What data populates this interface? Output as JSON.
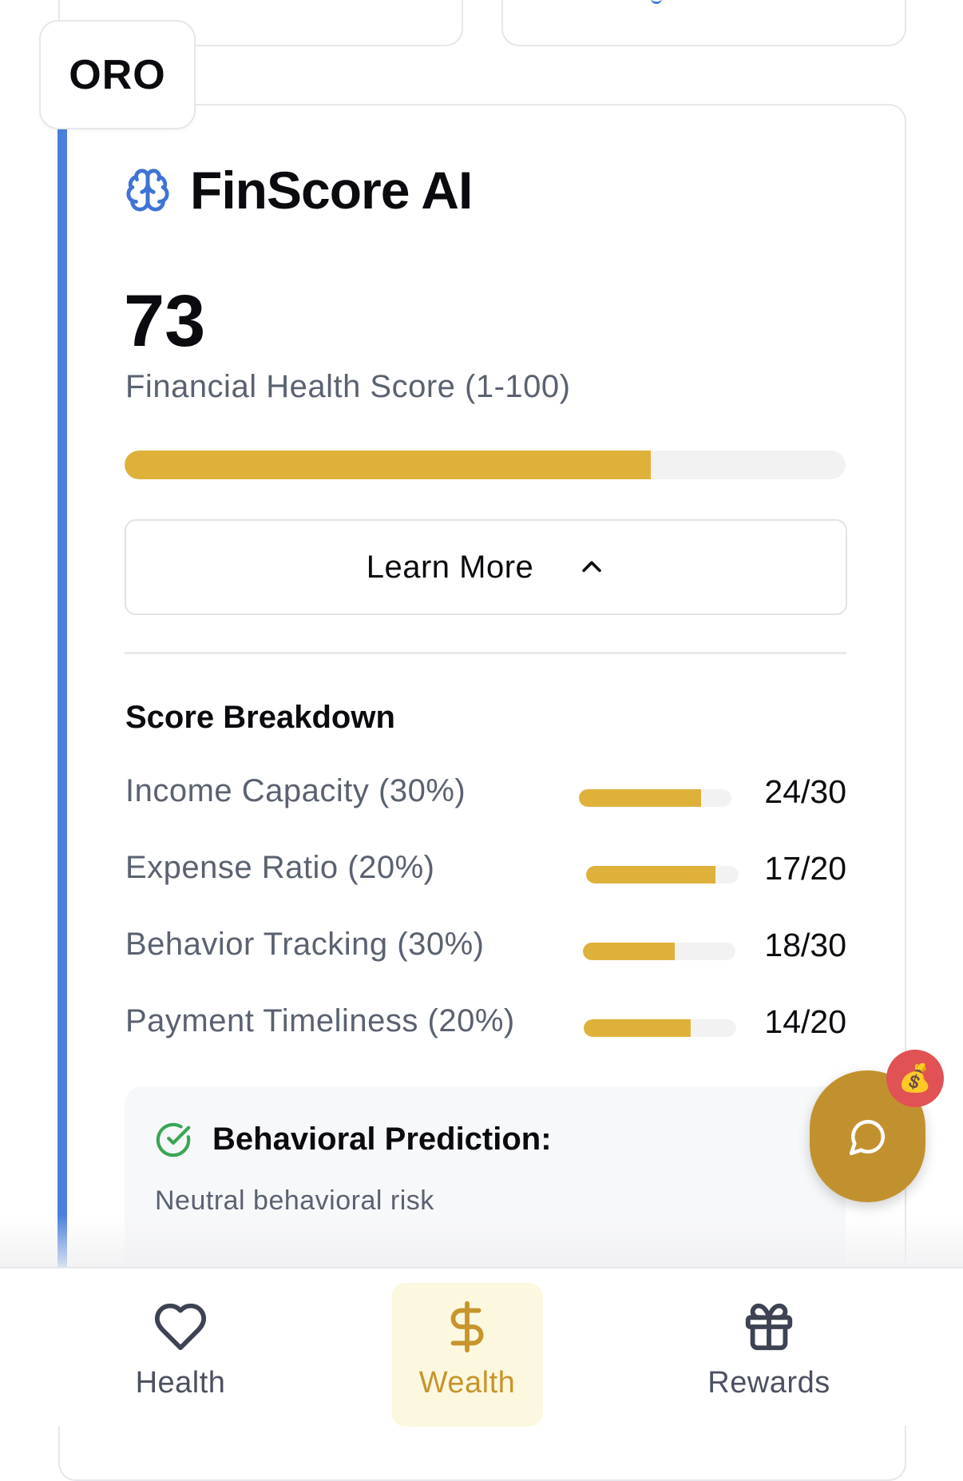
{
  "badge": {
    "label": "ORO"
  },
  "card": {
    "title": "FinScore AI",
    "score": "73",
    "score_label": "Financial Health Score (1-100)",
    "score_fraction": 0.73,
    "learn_more_label": "Learn More",
    "breakdown_title": "Score Breakdown",
    "breakdown": [
      {
        "label": "Income Capacity (30%)",
        "value": "24/30",
        "fraction": 0.8
      },
      {
        "label": "Expense Ratio (20%)",
        "value": "17/20",
        "fraction": 0.85
      },
      {
        "label": "Behavior Tracking (30%)",
        "value": "18/30",
        "fraction": 0.6
      },
      {
        "label": "Payment Timeliness (20%)",
        "value": "14/20",
        "fraction": 0.7
      }
    ],
    "prediction": {
      "title": "Behavioral Prediction:",
      "text": "Neutral behavioral risk"
    }
  },
  "fab": {
    "badge_emoji": "💰",
    "icon": "chat-bubble-icon"
  },
  "nav": {
    "items": [
      {
        "label": "Health",
        "icon": "heart-icon",
        "active": false
      },
      {
        "label": "Wealth",
        "icon": "dollar-icon",
        "active": true
      },
      {
        "label": "Rewards",
        "icon": "gift-icon",
        "active": false
      }
    ]
  },
  "colors": {
    "accent_blue": "#4a7fdc",
    "gold": "#deb13b",
    "fab_gold": "#c2912f",
    "badge_red": "#e05254",
    "check_green": "#3aa655"
  }
}
